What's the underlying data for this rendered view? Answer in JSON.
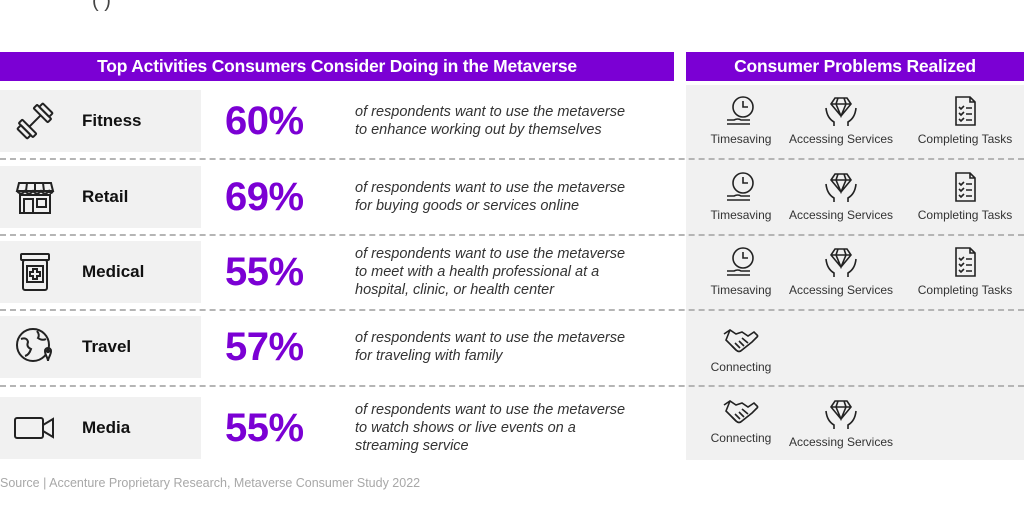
{
  "left_header": "Top Activities Consumers Consider Doing in the Metaverse",
  "right_header": "Consumer Problems Realized",
  "activities": [
    {
      "name": "Fitness",
      "percent": "60%",
      "desc": [
        "of respondents want to use the metaverse",
        "to enhance working out by themselves"
      ],
      "icon": "dumbbell-icon"
    },
    {
      "name": "Retail",
      "percent": "69%",
      "desc": [
        "of respondents want to use the metaverse",
        "for buying goods or services online"
      ],
      "icon": "storefront-icon"
    },
    {
      "name": "Medical",
      "percent": "55%",
      "desc": [
        "of respondents want to use the metaverse",
        "to meet with a health professional at a",
        "hospital, clinic, or health center"
      ],
      "icon": "medicine-bottle-icon"
    },
    {
      "name": "Travel",
      "percent": "57%",
      "desc": [
        "of respondents want to use the metaverse",
        "for traveling with family"
      ],
      "icon": "globe-pin-icon"
    },
    {
      "name": "Media",
      "percent": "55%",
      "desc": [
        "of respondents want to use the metaverse",
        "to watch shows or live events on a",
        "streaming service"
      ],
      "icon": "video-camera-icon"
    }
  ],
  "problems": [
    [
      {
        "label": "Timesaving",
        "icon": "clock-hand-icon"
      },
      {
        "label": "Accessing Services",
        "icon": "diamond-hands-icon"
      },
      {
        "label": "Completing Tasks",
        "icon": "checklist-icon"
      }
    ],
    [
      {
        "label": "Timesaving",
        "icon": "clock-hand-icon"
      },
      {
        "label": "Accessing Services",
        "icon": "diamond-hands-icon"
      },
      {
        "label": "Completing Tasks",
        "icon": "checklist-icon"
      }
    ],
    [
      {
        "label": "Timesaving",
        "icon": "clock-hand-icon"
      },
      {
        "label": "Accessing Services",
        "icon": "diamond-hands-icon"
      },
      {
        "label": "Completing Tasks",
        "icon": "checklist-icon"
      }
    ],
    [
      {
        "label": "Connecting",
        "icon": "handshake-icon"
      }
    ],
    [
      {
        "label": "Connecting",
        "icon": "handshake-icon"
      },
      {
        "label": "Accessing Services",
        "icon": "diamond-hands-icon"
      }
    ]
  ],
  "source": "Source | Accenture Proprietary Research, Metaverse Consumer Study 2022",
  "colors": {
    "accent": "#7b00d4",
    "panel": "#f1f1f1",
    "dash": "#b5b5b5"
  }
}
